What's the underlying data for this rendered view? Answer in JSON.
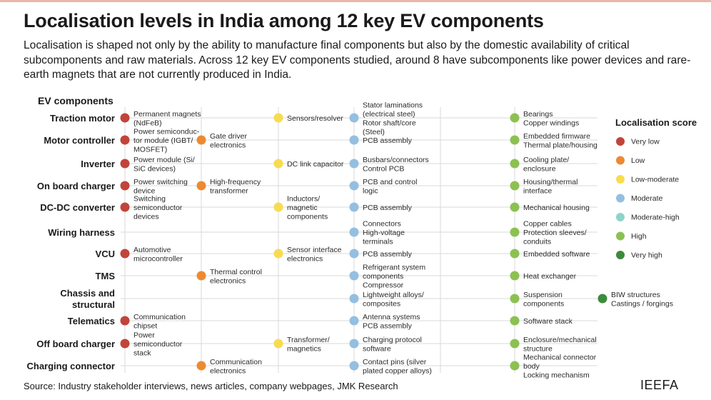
{
  "title": "Localisation levels in India among 12 key EV components",
  "subtitle": "Localisation is shaped not only by the ability to manufacture final components but also by the domestic availability of critical subcomponents and raw materials. Across 12 key EV components studied, around 8 have subcomponents like power devices and rare-earth magnets that are not currently produced in India.",
  "column_header": "EV components",
  "source": "Source: Industry stakeholder interviews, news articles, company webpages, JMK Research",
  "brand": "IEEFA",
  "chart_data": {
    "type": "matrix",
    "title": "Localisation levels in India among 12 key EV components",
    "legend_title": "Localisation score",
    "legend_position": "right",
    "score_levels": [
      {
        "name": "Very low",
        "color": "#c1443b"
      },
      {
        "name": "Low",
        "color": "#ec8a33"
      },
      {
        "name": "Low-moderate",
        "color": "#f7dc4f"
      },
      {
        "name": "Moderate",
        "color": "#94bfe0"
      },
      {
        "name": "Moderate-high",
        "color": "#8fd3cd"
      },
      {
        "name": "High",
        "color": "#8cc152"
      },
      {
        "name": "Very high",
        "color": "#3c8b3c"
      }
    ],
    "rows": [
      {
        "name": "Traction motor",
        "items": [
          {
            "score": "Very low",
            "label": [
              "Permanent magnets",
              "(NdFeB)"
            ]
          },
          {
            "score": "Low-moderate",
            "label": [
              "Sensors/resolver"
            ]
          },
          {
            "score": "Moderate",
            "label": [
              "Stator laminations",
              "(electrical steel)",
              "Rotor shaft/core",
              "(Steel)"
            ]
          },
          {
            "score": "High",
            "label": [
              "Bearings",
              "Copper windings"
            ]
          }
        ]
      },
      {
        "name": "Motor controller",
        "items": [
          {
            "score": "Very low",
            "label": [
              "Power semiconduc-",
              "tor module (IGBT/",
              "MOSFET)"
            ]
          },
          {
            "score": "Low",
            "label": [
              "Gate driver",
              "electronics"
            ]
          },
          {
            "score": "Moderate",
            "label": [
              "PCB assembly"
            ]
          },
          {
            "score": "High",
            "label": [
              "Embedded firmware",
              "Thermal plate/housing"
            ]
          }
        ]
      },
      {
        "name": "Inverter",
        "items": [
          {
            "score": "Very low",
            "label": [
              "Power module (Si/",
              "SiC devices)"
            ]
          },
          {
            "score": "Low-moderate",
            "label": [
              "DC link capacitor"
            ]
          },
          {
            "score": "Moderate",
            "label": [
              "Busbars/connectors",
              "Control PCB"
            ]
          },
          {
            "score": "High",
            "label": [
              "Cooling plate/",
              "enclosure"
            ]
          }
        ]
      },
      {
        "name": "On board charger",
        "items": [
          {
            "score": "Very low",
            "label": [
              "Power switching",
              "device"
            ]
          },
          {
            "score": "Low",
            "label": [
              "High-frequency",
              "transformer"
            ]
          },
          {
            "score": "Moderate",
            "label": [
              "PCB and control",
              "logic"
            ]
          },
          {
            "score": "High",
            "label": [
              "Housing/thermal",
              "interface"
            ]
          }
        ]
      },
      {
        "name": "DC-DC converter",
        "items": [
          {
            "score": "Very low",
            "label": [
              "Switching",
              "semiconductor",
              "devices"
            ]
          },
          {
            "score": "Low-moderate",
            "label": [
              "Inductors/",
              "magnetic",
              "components"
            ]
          },
          {
            "score": "Moderate",
            "label": [
              "PCB assembly"
            ]
          },
          {
            "score": "High",
            "label": [
              "Mechanical housing"
            ]
          }
        ]
      },
      {
        "name": "Wiring harness",
        "items": [
          {
            "score": "Moderate",
            "label": [
              "Connectors",
              "High-voltage",
              "terminals"
            ]
          },
          {
            "score": "High",
            "label": [
              "Copper cables",
              "Protection sleeves/",
              "conduits"
            ]
          }
        ]
      },
      {
        "name": "VCU",
        "items": [
          {
            "score": "Very low",
            "label": [
              "Automotive",
              "microcontroller"
            ]
          },
          {
            "score": "Low-moderate",
            "label": [
              "Sensor interface",
              "electronics"
            ]
          },
          {
            "score": "Moderate",
            "label": [
              "PCB assembly"
            ]
          },
          {
            "score": "High",
            "label": [
              "Embedded software"
            ]
          }
        ]
      },
      {
        "name": "TMS",
        "items": [
          {
            "score": "Low",
            "label": [
              "Thermal control",
              "electronics"
            ]
          },
          {
            "score": "Moderate",
            "label": [
              "Refrigerant system",
              "components",
              "Compressor"
            ]
          },
          {
            "score": "High",
            "label": [
              "Heat exchanger"
            ]
          }
        ]
      },
      {
        "name": [
          "Chassis and",
          "structural"
        ],
        "items": [
          {
            "score": "Moderate",
            "label": [
              "Lightweight alloys/",
              "composites"
            ]
          },
          {
            "score": "High",
            "label": [
              "Suspension",
              "components"
            ]
          },
          {
            "score": "Very high",
            "label": [
              "BIW structures",
              "Castings / forgings"
            ]
          }
        ]
      },
      {
        "name": "Telematics",
        "items": [
          {
            "score": "Very low",
            "label": [
              "Communication",
              "chipset"
            ]
          },
          {
            "score": "Moderate",
            "label": [
              "Antenna systems",
              "PCB assembly"
            ]
          },
          {
            "score": "High",
            "label": [
              "Software stack"
            ]
          }
        ]
      },
      {
        "name": "Off board charger",
        "items": [
          {
            "score": "Very low",
            "label": [
              "Power",
              "semiconductor",
              "stack"
            ]
          },
          {
            "score": "Low-moderate",
            "label": [
              "Transformer/",
              "magnetics"
            ]
          },
          {
            "score": "Moderate",
            "label": [
              "Charging protocol",
              "software"
            ]
          },
          {
            "score": "High",
            "label": [
              "Enclosure/mechanical",
              "structure"
            ]
          }
        ]
      },
      {
        "name": "Charging connector",
        "items": [
          {
            "score": "Low",
            "label": [
              "Communication",
              "electronics"
            ]
          },
          {
            "score": "Moderate",
            "label": [
              "Contact pins (silver",
              "plated copper alloys)"
            ]
          },
          {
            "score": "High",
            "label": [
              "Mechanical connector",
              "body",
              "Locking mechanism"
            ]
          }
        ]
      }
    ]
  }
}
